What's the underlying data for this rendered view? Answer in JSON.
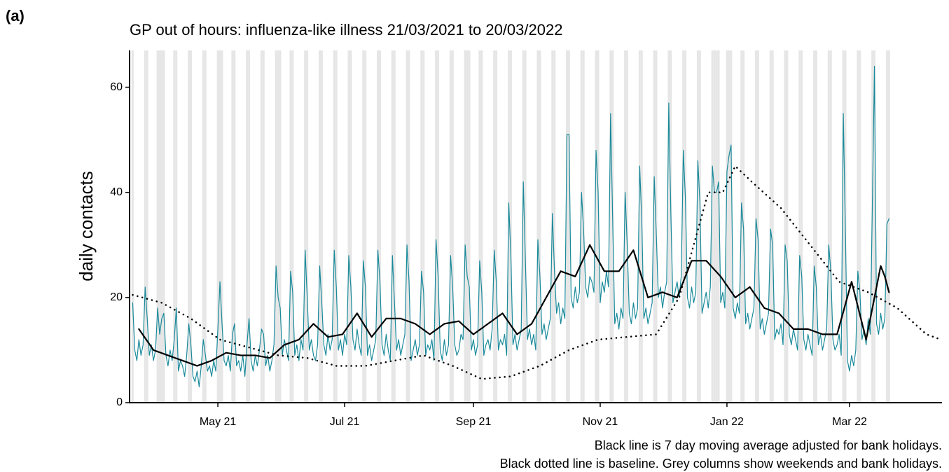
{
  "chart_data": {
    "type": "line",
    "panel_label": "(a)",
    "title": "GP out of hours: influenza-like illness 21/03/2021 to 20/03/2022",
    "ylabel": "daily contacts",
    "notes": [
      "Black line is 7 day moving average adjusted for bank holidays.",
      "Black dotted line is baseline. Grey columns show weekends and bank holidays."
    ],
    "xlim": [
      -1.5,
      389.5
    ],
    "ylim": [
      0,
      67
    ],
    "xticks": [
      {
        "value": 41,
        "label": "May 21"
      },
      {
        "value": 102,
        "label": "Jul 21"
      },
      {
        "value": 164,
        "label": "Sep 21"
      },
      {
        "value": 225,
        "label": "Nov 21"
      },
      {
        "value": 286,
        "label": "Jan 22"
      },
      {
        "value": 345,
        "label": "Mar 22"
      }
    ],
    "yticks": [
      0,
      20,
      40,
      60
    ],
    "shade_color": "#e6e6e6",
    "shaded_days": [
      0,
      6,
      7,
      12,
      13,
      14,
      15,
      20,
      21,
      27,
      28,
      34,
      35,
      41,
      42,
      43,
      48,
      49,
      55,
      56,
      62,
      63,
      69,
      70,
      71,
      76,
      77,
      83,
      84,
      90,
      91,
      97,
      98,
      104,
      105,
      111,
      112,
      118,
      119,
      125,
      126,
      132,
      133,
      139,
      140,
      146,
      147,
      153,
      154,
      160,
      161,
      162,
      167,
      168,
      174,
      175,
      181,
      182,
      188,
      189,
      195,
      196,
      202,
      203,
      209,
      210,
      216,
      217,
      223,
      224,
      230,
      231,
      237,
      238,
      244,
      245,
      251,
      252,
      258,
      259,
      265,
      266,
      272,
      273,
      279,
      280,
      281,
      282,
      286,
      287,
      288,
      293,
      294,
      300,
      301,
      307,
      308,
      314,
      315,
      321,
      322,
      328,
      329,
      335,
      336,
      342,
      343,
      349,
      350,
      356,
      357,
      363,
      364
    ],
    "series": [
      {
        "color": "#1a8a9a",
        "line_style": "solid",
        "x": [
          0,
          1,
          2,
          3,
          4,
          5,
          6,
          7,
          8,
          9,
          10,
          11,
          12,
          13,
          14,
          15,
          16,
          17,
          18,
          19,
          20,
          21,
          22,
          23,
          24,
          25,
          26,
          27,
          28,
          29,
          30,
          31,
          32,
          33,
          34,
          35,
          36,
          37,
          38,
          39,
          40,
          41,
          42,
          43,
          44,
          45,
          46,
          47,
          48,
          49,
          50,
          51,
          52,
          53,
          54,
          55,
          56,
          57,
          58,
          59,
          60,
          61,
          62,
          63,
          64,
          65,
          66,
          67,
          68,
          69,
          70,
          71,
          72,
          73,
          74,
          75,
          76,
          77,
          78,
          79,
          80,
          81,
          82,
          83,
          84,
          85,
          86,
          87,
          88,
          89,
          90,
          91,
          92,
          93,
          94,
          95,
          96,
          97,
          98,
          99,
          100,
          101,
          102,
          103,
          104,
          105,
          106,
          107,
          108,
          109,
          110,
          111,
          112,
          113,
          114,
          115,
          116,
          117,
          118,
          119,
          120,
          121,
          122,
          123,
          124,
          125,
          126,
          127,
          128,
          129,
          130,
          131,
          132,
          133,
          134,
          135,
          136,
          137,
          138,
          139,
          140,
          141,
          142,
          143,
          144,
          145,
          146,
          147,
          148,
          149,
          150,
          151,
          152,
          153,
          154,
          155,
          156,
          157,
          158,
          159,
          160,
          161,
          162,
          163,
          164,
          165,
          166,
          167,
          168,
          169,
          170,
          171,
          172,
          173,
          174,
          175,
          176,
          177,
          178,
          179,
          180,
          181,
          182,
          183,
          184,
          185,
          186,
          187,
          188,
          189,
          190,
          191,
          192,
          193,
          194,
          195,
          196,
          197,
          198,
          199,
          200,
          201,
          202,
          203,
          204,
          205,
          206,
          207,
          208,
          209,
          210,
          211,
          212,
          213,
          214,
          215,
          216,
          217,
          218,
          219,
          220,
          221,
          222,
          223,
          224,
          225,
          226,
          227,
          228,
          229,
          230,
          231,
          232,
          233,
          234,
          235,
          236,
          237,
          238,
          239,
          240,
          241,
          242,
          243,
          244,
          245,
          246,
          247,
          248,
          249,
          250,
          251,
          252,
          253,
          254,
          255,
          256,
          257,
          258,
          259,
          260,
          261,
          262,
          263,
          264,
          265,
          266,
          267,
          268,
          269,
          270,
          271,
          272,
          273,
          274,
          275,
          276,
          277,
          278,
          279,
          280,
          281,
          282,
          283,
          284,
          285,
          286,
          287,
          288,
          289,
          290,
          291,
          292,
          293,
          294,
          295,
          296,
          297,
          298,
          299,
          300,
          301,
          302,
          303,
          304,
          305,
          306,
          307,
          308,
          309,
          310,
          311,
          312,
          313,
          314,
          315,
          316,
          317,
          318,
          319,
          320,
          321,
          322,
          323,
          324,
          325,
          326,
          327,
          328,
          329,
          330,
          331,
          332,
          333,
          334,
          335,
          336,
          337,
          338,
          339,
          340,
          341,
          342,
          343,
          344,
          345,
          346,
          347,
          348,
          349,
          350,
          351,
          352,
          353,
          354,
          355,
          356,
          357,
          358,
          359,
          360,
          361,
          362,
          363,
          364
        ],
        "values": [
          19,
          10,
          8,
          12,
          9,
          11,
          22,
          16,
          9,
          11,
          8,
          10,
          18,
          13,
          16,
          17,
          9,
          7,
          10,
          8,
          12,
          18,
          6,
          8,
          7,
          5,
          9,
          15,
          11,
          5,
          4,
          6,
          3,
          7,
          12,
          9,
          6,
          7,
          5,
          8,
          6,
          14,
          23,
          15,
          8,
          7,
          9,
          6,
          13,
          15,
          7,
          8,
          6,
          9,
          5,
          11,
          16,
          8,
          6,
          9,
          7,
          10,
          14,
          13,
          7,
          9,
          6,
          8,
          11,
          26,
          20,
          18,
          9,
          12,
          10,
          8,
          25,
          21,
          9,
          11,
          8,
          12,
          10,
          29,
          20,
          10,
          12,
          9,
          8,
          11,
          26,
          19,
          11,
          9,
          13,
          10,
          12,
          29,
          22,
          10,
          12,
          9,
          13,
          11,
          28,
          22,
          12,
          10,
          14,
          11,
          9,
          27,
          22,
          9,
          11,
          8,
          10,
          12,
          29,
          23,
          11,
          9,
          13,
          10,
          8,
          28,
          19,
          10,
          12,
          9,
          11,
          13,
          30,
          23,
          8,
          10,
          12,
          9,
          11,
          25,
          21,
          9,
          11,
          10,
          12,
          8,
          31,
          24,
          10,
          8,
          12,
          9,
          11,
          28,
          22,
          11,
          9,
          10,
          13,
          12,
          30,
          24,
          22,
          10,
          12,
          9,
          11,
          27,
          21,
          9,
          11,
          12,
          10,
          14,
          29,
          23,
          10,
          12,
          11,
          13,
          9,
          38,
          28,
          11,
          13,
          10,
          12,
          14,
          42,
          27,
          12,
          14,
          11,
          13,
          10,
          31,
          24,
          13,
          15,
          12,
          14,
          16,
          36,
          25,
          17,
          19,
          15,
          18,
          16,
          51,
          51,
          20,
          18,
          22,
          19,
          21,
          40,
          33,
          22,
          20,
          24,
          23,
          21,
          48,
          40,
          19,
          23,
          21,
          25,
          22,
          55,
          35,
          15,
          17,
          14,
          18,
          16,
          40,
          30,
          17,
          15,
          19,
          16,
          18,
          45,
          35,
          16,
          18,
          15,
          17,
          19,
          43,
          32,
          20,
          22,
          18,
          21,
          23,
          57,
          36,
          19,
          21,
          23,
          20,
          24,
          48,
          39,
          20,
          18,
          22,
          19,
          21,
          46,
          38,
          17,
          19,
          21,
          18,
          22,
          45,
          40,
          40,
          42,
          19,
          21,
          18,
          44,
          47,
          49,
          18,
          16,
          19,
          17,
          38,
          33,
          15,
          17,
          14,
          16,
          18,
          35,
          31,
          14,
          16,
          13,
          15,
          17,
          33,
          30,
          12,
          14,
          13,
          15,
          11,
          30,
          27,
          13,
          11,
          14,
          12,
          10,
          28,
          24,
          12,
          10,
          13,
          11,
          9,
          26,
          22,
          11,
          13,
          10,
          12,
          14,
          30,
          25,
          12,
          10,
          11,
          13,
          9,
          55,
          33,
          8,
          6,
          9,
          7,
          10,
          25,
          21,
          12,
          14,
          11,
          16,
          13,
          38,
          64,
          15,
          13,
          17,
          14,
          16,
          34,
          35
        ]
      },
      {
        "color": "#000000",
        "line_style": "solid",
        "x": [
          3,
          10,
          17,
          24,
          31,
          38,
          45,
          52,
          59,
          66,
          73,
          80,
          87,
          94,
          101,
          108,
          115,
          122,
          129,
          136,
          143,
          150,
          157,
          164,
          171,
          178,
          185,
          192,
          199,
          206,
          213,
          220,
          227,
          234,
          241,
          248,
          255,
          262,
          269,
          276,
          283,
          290,
          297,
          304,
          311,
          318,
          325,
          332,
          339,
          346,
          353,
          360,
          362,
          364
        ],
        "values": [
          14,
          10,
          9,
          8,
          7,
          8,
          9.5,
          9,
          9,
          8.5,
          11,
          12,
          15,
          12.5,
          13,
          17,
          12.5,
          16,
          16,
          15,
          13,
          15,
          15.5,
          13,
          15,
          17,
          13,
          15,
          20,
          25,
          24,
          30,
          25,
          25,
          29,
          20,
          21,
          20,
          27,
          27,
          24,
          20,
          22,
          18,
          17,
          14,
          14,
          13,
          13,
          23,
          12,
          26,
          24,
          21
        ]
      },
      {
        "color": "#000000",
        "line_style": "dotted",
        "x": [
          0,
          14,
          28,
          42,
          56,
          70,
          84,
          98,
          112,
          126,
          140,
          154,
          168,
          182,
          196,
          210,
          224,
          238,
          252,
          263,
          270,
          277,
          284,
          290,
          298,
          312,
          326,
          340,
          354,
          368,
          382,
          389
        ],
        "values": [
          20.5,
          19,
          16,
          12,
          10.5,
          9,
          8.5,
          7,
          7,
          8,
          9,
          7,
          4.5,
          5,
          7,
          10,
          12,
          12.5,
          13,
          20,
          30,
          40,
          40,
          45,
          42,
          37,
          30,
          23,
          21,
          18,
          13,
          12
        ]
      }
    ]
  }
}
